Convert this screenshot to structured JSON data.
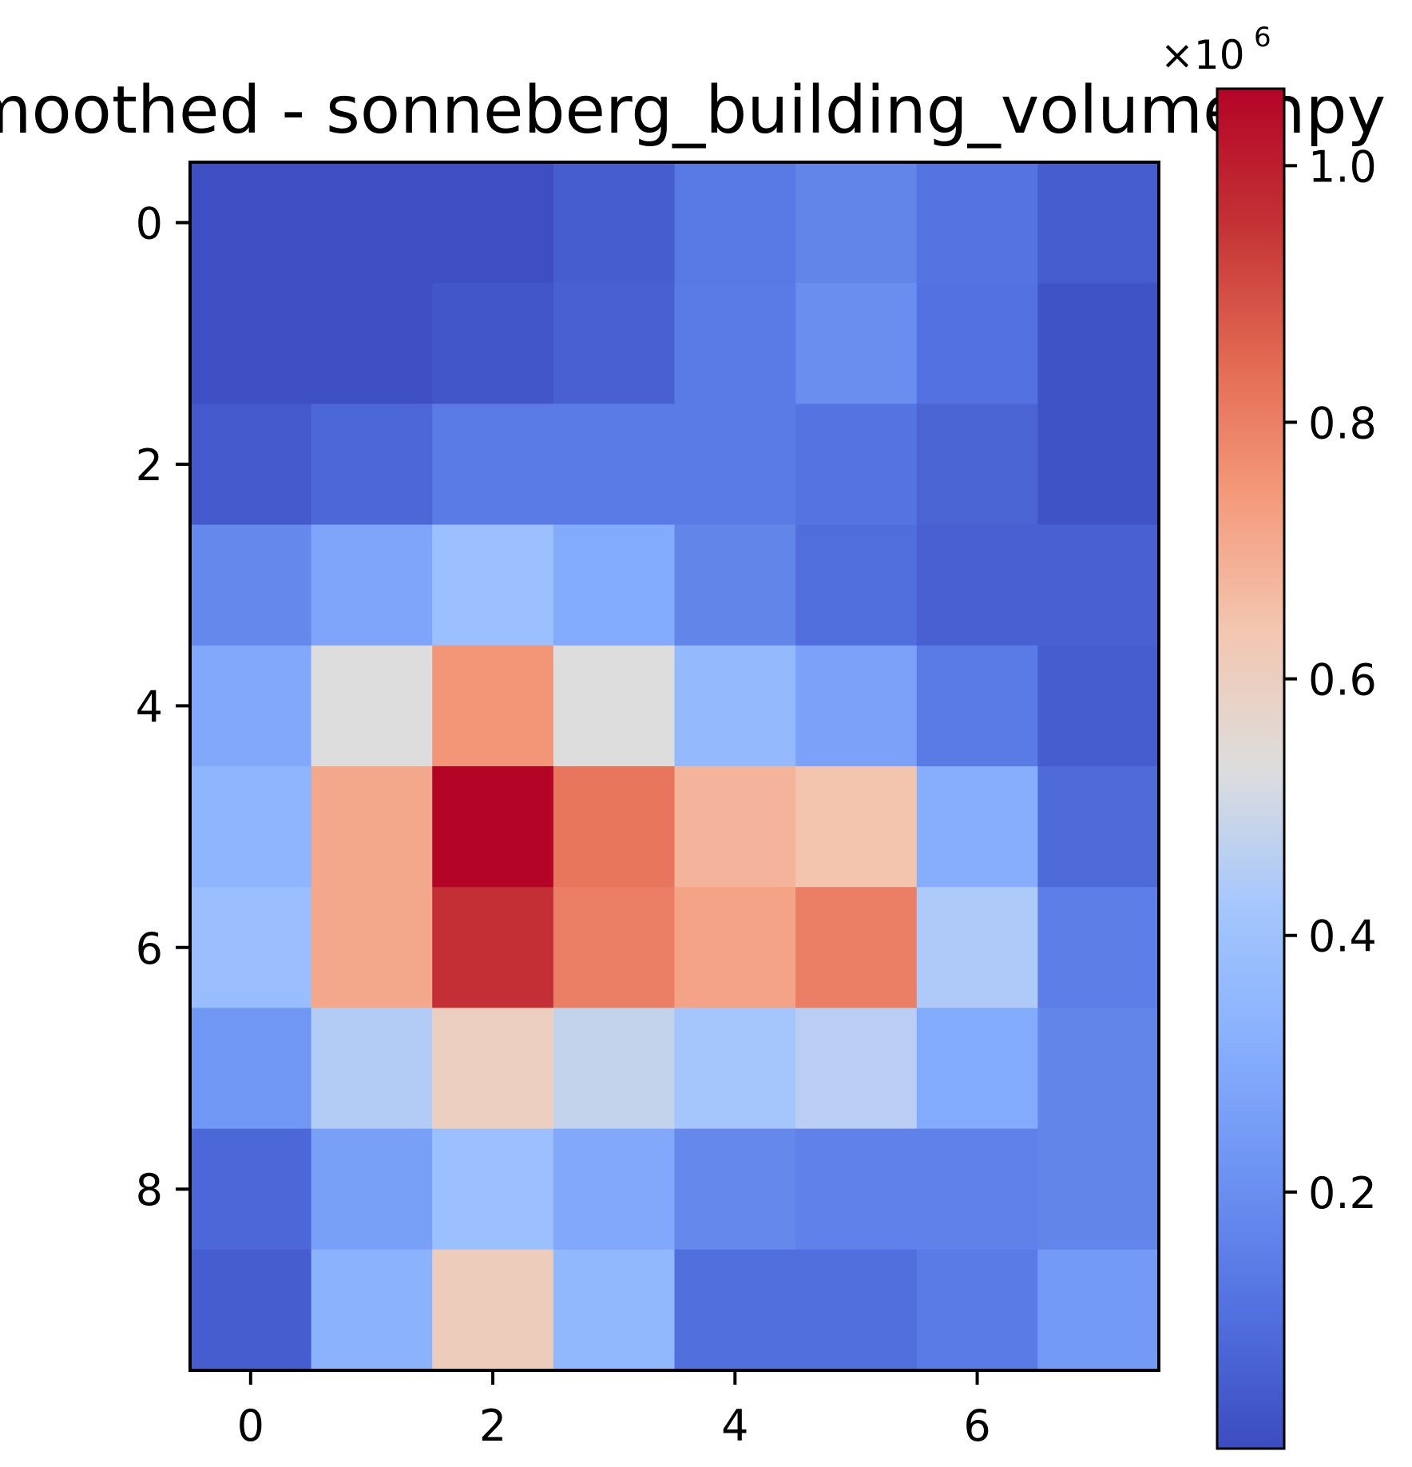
{
  "chart_data": {
    "type": "heatmap",
    "title": "smoothed - sonneberg_building_volume.npy",
    "colormap": "coolwarm",
    "rows": 10,
    "cols": 8,
    "x_ticks": [
      0,
      2,
      4,
      6
    ],
    "y_ticks": [
      0,
      2,
      4,
      6,
      8
    ],
    "values": [
      [
        10000,
        10000,
        10000,
        50000,
        130000,
        170000,
        120000,
        50000
      ],
      [
        10000,
        10000,
        30000,
        60000,
        140000,
        200000,
        110000,
        20000
      ],
      [
        40000,
        80000,
        140000,
        140000,
        140000,
        120000,
        70000,
        20000
      ],
      [
        180000,
        280000,
        390000,
        300000,
        170000,
        100000,
        60000,
        60000
      ],
      [
        290000,
        530000,
        750000,
        530000,
        360000,
        270000,
        140000,
        50000
      ],
      [
        340000,
        710000,
        1060000,
        820000,
        680000,
        640000,
        310000,
        90000
      ],
      [
        380000,
        710000,
        960000,
        800000,
        720000,
        800000,
        440000,
        150000
      ],
      [
        230000,
        450000,
        600000,
        480000,
        420000,
        460000,
        300000,
        170000
      ],
      [
        80000,
        260000,
        390000,
        290000,
        180000,
        160000,
        160000,
        170000
      ],
      [
        50000,
        330000,
        610000,
        350000,
        100000,
        100000,
        140000,
        240000
      ]
    ],
    "colorbar": {
      "min": 0,
      "max": 1060000,
      "ticks": [
        0.2,
        0.4,
        0.6,
        0.8,
        1.0
      ],
      "tick_labels": [
        "0.2",
        "0.4",
        "0.6",
        "0.8",
        "1.0"
      ],
      "multiplier": "×10",
      "exponent": "6"
    }
  }
}
